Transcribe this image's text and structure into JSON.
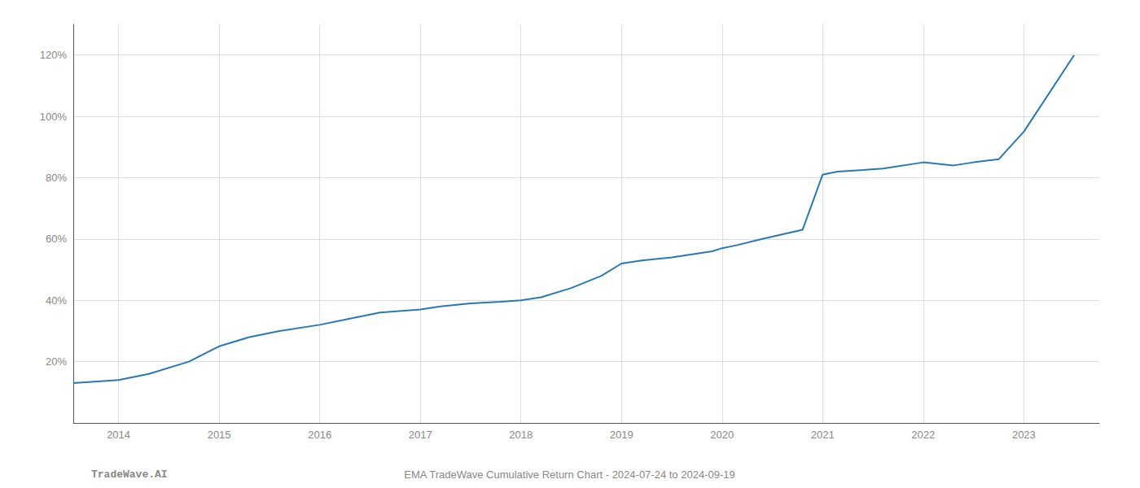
{
  "chart_data": {
    "type": "line",
    "x": [
      2013.55,
      2014.0,
      2014.3,
      2014.7,
      2015.0,
      2015.3,
      2015.6,
      2016.0,
      2016.3,
      2016.6,
      2017.0,
      2017.2,
      2017.5,
      2017.8,
      2018.0,
      2018.2,
      2018.5,
      2018.8,
      2019.0,
      2019.2,
      2019.5,
      2019.7,
      2019.9,
      2020.0,
      2020.15,
      2020.4,
      2020.8,
      2021.0,
      2021.15,
      2021.4,
      2021.6,
      2022.0,
      2022.3,
      2022.5,
      2022.75,
      2023.0,
      2023.5
    ],
    "values": [
      13,
      14,
      16,
      20,
      25,
      28,
      30,
      32,
      34,
      36,
      37,
      38,
      39,
      39.5,
      40,
      41,
      44,
      48,
      52,
      53,
      54,
      55,
      56,
      57,
      58,
      60,
      63,
      81,
      82,
      82.5,
      83,
      85,
      84,
      85,
      86,
      95,
      120
    ],
    "color": "#2878b5",
    "xlim": [
      2013.55,
      2023.75
    ],
    "ylim": [
      0,
      130
    ],
    "xticks": [
      2014,
      2015,
      2016,
      2017,
      2018,
      2019,
      2020,
      2021,
      2022,
      2023
    ],
    "yticks": [
      {
        "value": 20,
        "label": "20%"
      },
      {
        "value": 40,
        "label": "40%"
      },
      {
        "value": 60,
        "label": "60%"
      },
      {
        "value": 80,
        "label": "80%"
      },
      {
        "value": 100,
        "label": "100%"
      },
      {
        "value": 120,
        "label": "120%"
      }
    ],
    "grid": true,
    "annotations": [
      "TradeWave.AI",
      "EMA TradeWave Cumulative Return Chart - 2024-07-24 to 2024-09-19"
    ]
  }
}
